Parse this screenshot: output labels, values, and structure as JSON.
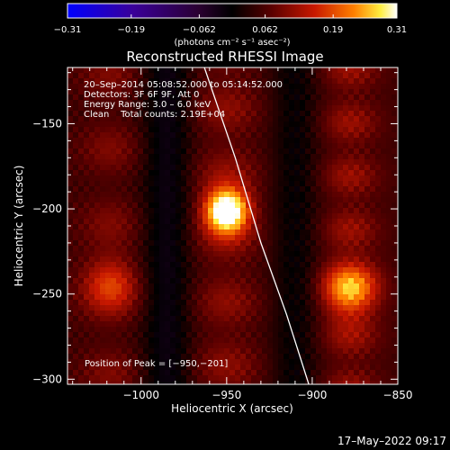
{
  "chart_data": {
    "type": "heatmap",
    "title": "Reconstructed RHESSI Image",
    "xlabel": "Heliocentric X (arcsec)",
    "ylabel": "Heliocentric Y (arcsec)",
    "xlim": [
      -1043,
      -850
    ],
    "ylim": [
      -303,
      -117
    ],
    "xticks": [
      {
        "value": -1000,
        "label": "−1000"
      },
      {
        "value": -950,
        "label": "−950"
      },
      {
        "value": -900,
        "label": "−900"
      },
      {
        "value": -850,
        "label": "−850"
      }
    ],
    "yticks": [
      {
        "value": -150,
        "label": "−150"
      },
      {
        "value": -200,
        "label": "−200"
      },
      {
        "value": -250,
        "label": "−250"
      },
      {
        "value": -300,
        "label": "−300"
      }
    ],
    "colorbar": {
      "range": [
        -0.31,
        0.31
      ],
      "ticks": [
        {
          "value": -0.31,
          "label": "−0.31"
        },
        {
          "value": -0.19,
          "label": "−0.19"
        },
        {
          "value": -0.062,
          "label": "−0.062"
        },
        {
          "value": 0.062,
          "label": "0.062"
        },
        {
          "value": 0.19,
          "label": "0.19"
        },
        {
          "value": 0.31,
          "label": "0.31"
        }
      ],
      "unit_label": "(photons cm⁻² s⁻¹ asec⁻²)"
    },
    "annotations": [
      "20–Sep–2014 05:08:52.000 to 05:14:52.000",
      "Detectors: 3F 6F 9F, Att 0",
      "Energy Range: 3.0 – 6.0 keV",
      "Clean    Total counts: 2.19E+04"
    ],
    "peak": {
      "x": -950,
      "y": -201,
      "label": "Position of Peak = [−950,−201]"
    },
    "limb": [
      [
        -963,
        -117
      ],
      [
        -945,
        -170
      ],
      [
        -930,
        -220
      ],
      [
        -915,
        -262
      ],
      [
        -902,
        -303
      ]
    ],
    "sources": [
      {
        "x": -950,
        "y": -201,
        "amplitude": 0.31
      },
      {
        "x": -878,
        "y": -248,
        "amplitude": 0.16
      },
      {
        "x": -1018,
        "y": -243,
        "amplitude": 0.1
      }
    ]
  },
  "footer": {
    "timestamp": "17–May–2022 09:17"
  }
}
